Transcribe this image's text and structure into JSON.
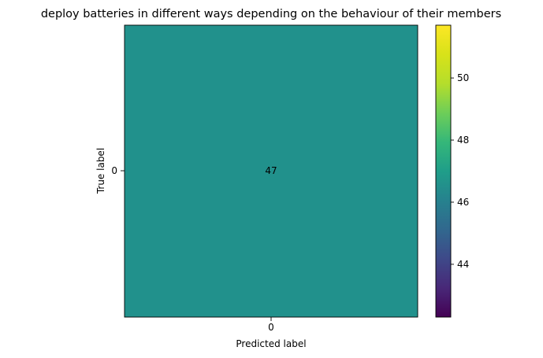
{
  "chart_data": {
    "type": "heatmap",
    "title": "deploy batteries in different ways depending on the behaviour of their members",
    "xlabel": "Predicted label",
    "ylabel": "True label",
    "x_categories": [
      "0"
    ],
    "y_categories": [
      "0"
    ],
    "matrix": [
      [
        47
      ]
    ],
    "cell_labels": [
      [
        "47"
      ]
    ],
    "cell_color": "#21918c",
    "colormap": "viridis",
    "colorbar": {
      "range": [
        42.3,
        51.7
      ],
      "ticks": [
        44,
        46,
        48,
        50
      ],
      "tick_labels": [
        "44",
        "46",
        "48",
        "50"
      ]
    },
    "grid": false
  }
}
